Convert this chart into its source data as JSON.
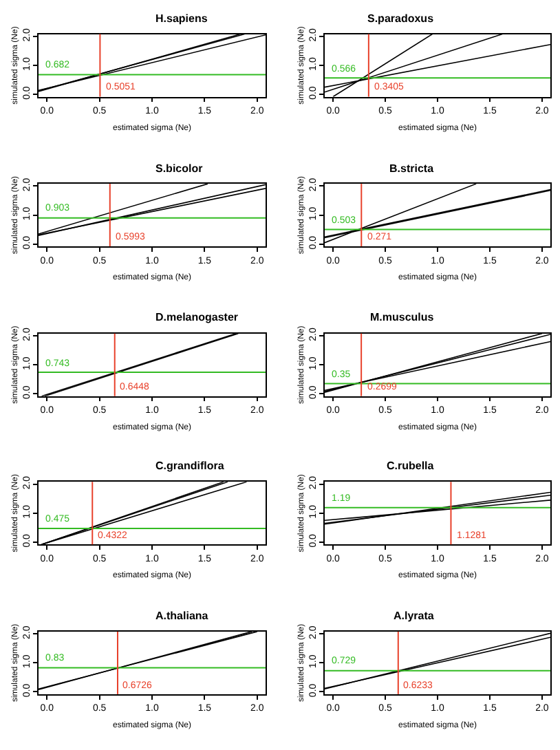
{
  "chart_data": [
    {
      "type": "line",
      "title": "H.sapiens",
      "xlabel": "estimated sigma (Ne)",
      "ylabel": "simulated sigma (Ne)",
      "xlim": [
        -0.08,
        2.08
      ],
      "ylim": [
        -0.08,
        2.08
      ],
      "xticks": [
        {
          "value": 0,
          "label": "0.0"
        },
        {
          "value": 0.5,
          "label": "0.5"
        },
        {
          "value": 1,
          "label": "1.0"
        },
        {
          "value": 1.5,
          "label": "1.5"
        },
        {
          "value": 2,
          "label": "2.0"
        }
      ],
      "yticks": [
        {
          "value": 0,
          "label": "0.0"
        },
        {
          "value": 1,
          "label": "1.0"
        },
        {
          "value": 2,
          "label": "2.0"
        }
      ],
      "series": [
        {
          "color": "#000000",
          "x": [
            -0.08,
            1.84
          ],
          "values": [
            0.1,
            2.08
          ]
        },
        {
          "color": "#000000",
          "x": [
            -0.08,
            1.88
          ],
          "values": [
            0.12,
            2.08
          ]
        },
        {
          "color": "#000000",
          "x": [
            -0.08,
            2.08
          ],
          "values": [
            0.14,
            2.05
          ]
        }
      ],
      "ref_lines": [
        {
          "axis": "y",
          "value": 0.682,
          "label": "0.682",
          "color": "#33bb22"
        },
        {
          "axis": "x",
          "value": 0.5051,
          "label": "0.5051",
          "color": "#e8402a"
        }
      ]
    },
    {
      "type": "line",
      "title": "S.paradoxus",
      "xlabel": "estimated sigma (Ne)",
      "ylabel": "simulated sigma (Ne)",
      "xlim": [
        -0.08,
        2.08
      ],
      "ylim": [
        -0.08,
        2.08
      ],
      "xticks": [
        {
          "value": 0,
          "label": "0.0"
        },
        {
          "value": 0.5,
          "label": "0.5"
        },
        {
          "value": 1,
          "label": "1.0"
        },
        {
          "value": 1.5,
          "label": "1.5"
        },
        {
          "value": 2,
          "label": "2.0"
        }
      ],
      "yticks": [
        {
          "value": 0,
          "label": "0.0"
        },
        {
          "value": 1,
          "label": "1.0"
        },
        {
          "value": 2,
          "label": "2.0"
        }
      ],
      "series": [
        {
          "color": "#000000",
          "x": [
            0.0,
            0.95
          ],
          "values": [
            -0.08,
            2.08
          ]
        },
        {
          "color": "#000000",
          "x": [
            -0.08,
            1.62
          ],
          "values": [
            0.08,
            2.08
          ]
        },
        {
          "color": "#000000",
          "x": [
            -0.08,
            2.08
          ],
          "values": [
            0.25,
            1.72
          ]
        }
      ],
      "ref_lines": [
        {
          "axis": "y",
          "value": 0.566,
          "label": "0.566",
          "color": "#33bb22"
        },
        {
          "axis": "x",
          "value": 0.3405,
          "label": "0.3405",
          "color": "#e8402a"
        }
      ]
    },
    {
      "type": "line",
      "title": "S.bicolor",
      "xlabel": "estimated sigma (Ne)",
      "ylabel": "simulated sigma (Ne)",
      "xlim": [
        -0.08,
        2.08
      ],
      "ylim": [
        -0.08,
        2.08
      ],
      "xticks": [
        {
          "value": 0,
          "label": "0.0"
        },
        {
          "value": 0.5,
          "label": "0.5"
        },
        {
          "value": 1,
          "label": "1.0"
        },
        {
          "value": 1.5,
          "label": "1.5"
        },
        {
          "value": 2,
          "label": "2.0"
        }
      ],
      "yticks": [
        {
          "value": 0,
          "label": "0.0"
        },
        {
          "value": 1,
          "label": "1.0"
        },
        {
          "value": 2,
          "label": "2.0"
        }
      ],
      "series": [
        {
          "color": "#000000",
          "x": [
            -0.08,
            1.53
          ],
          "values": [
            0.35,
            2.08
          ]
        },
        {
          "color": "#000000",
          "x": [
            -0.08,
            2.08
          ],
          "values": [
            0.3,
            2.05
          ]
        },
        {
          "color": "#000000",
          "x": [
            -0.08,
            2.08
          ],
          "values": [
            0.32,
            1.92
          ]
        }
      ],
      "ref_lines": [
        {
          "axis": "y",
          "value": 0.903,
          "label": "0.903",
          "color": "#33bb22"
        },
        {
          "axis": "x",
          "value": 0.5993,
          "label": "0.5993",
          "color": "#e8402a"
        }
      ]
    },
    {
      "type": "line",
      "title": "B.stricta",
      "xlabel": "estimated sigma (Ne)",
      "ylabel": "simulated sigma (Ne)",
      "xlim": [
        -0.08,
        2.08
      ],
      "ylim": [
        -0.08,
        2.08
      ],
      "xticks": [
        {
          "value": 0,
          "label": "0.0"
        },
        {
          "value": 0.5,
          "label": "0.5"
        },
        {
          "value": 1,
          "label": "1.0"
        },
        {
          "value": 1.5,
          "label": "1.5"
        },
        {
          "value": 2,
          "label": "2.0"
        }
      ],
      "yticks": [
        {
          "value": 0,
          "label": "0.0"
        },
        {
          "value": 1,
          "label": "1.0"
        },
        {
          "value": 2,
          "label": "2.0"
        }
      ],
      "series": [
        {
          "color": "#000000",
          "x": [
            -0.08,
            1.37
          ],
          "values": [
            0.05,
            2.08
          ]
        },
        {
          "color": "#000000",
          "x": [
            -0.08,
            2.08
          ],
          "values": [
            0.22,
            1.85
          ]
        },
        {
          "color": "#000000",
          "x": [
            -0.08,
            2.08
          ],
          "values": [
            0.25,
            1.88
          ]
        }
      ],
      "ref_lines": [
        {
          "axis": "y",
          "value": 0.503,
          "label": "0.503",
          "color": "#33bb22"
        },
        {
          "axis": "x",
          "value": 0.271,
          "label": "0.271",
          "color": "#e8402a"
        }
      ]
    },
    {
      "type": "line",
      "title": "D.melanogaster",
      "xlabel": "estimated sigma (Ne)",
      "ylabel": "simulated sigma (Ne)",
      "xlim": [
        -0.08,
        2.08
      ],
      "ylim": [
        -0.08,
        2.08
      ],
      "xticks": [
        {
          "value": 0,
          "label": "0.0"
        },
        {
          "value": 0.5,
          "label": "0.5"
        },
        {
          "value": 1,
          "label": "1.0"
        },
        {
          "value": 1.5,
          "label": "1.5"
        },
        {
          "value": 2,
          "label": "2.0"
        }
      ],
      "yticks": [
        {
          "value": 0,
          "label": "0.0"
        },
        {
          "value": 1,
          "label": "1.0"
        },
        {
          "value": 2,
          "label": "2.0"
        }
      ],
      "series": [
        {
          "color": "#000000",
          "x": [
            -0.02,
            1.82
          ],
          "values": [
            -0.08,
            2.08
          ]
        },
        {
          "color": "#000000",
          "x": [
            -0.05,
            1.8
          ],
          "values": [
            -0.08,
            2.08
          ]
        }
      ],
      "ref_lines": [
        {
          "axis": "y",
          "value": 0.743,
          "label": "0.743",
          "color": "#33bb22"
        },
        {
          "axis": "x",
          "value": 0.6448,
          "label": "0.6448",
          "color": "#e8402a"
        }
      ]
    },
    {
      "type": "line",
      "title": "M.musculus",
      "xlabel": "estimated sigma (Ne)",
      "ylabel": "simulated sigma (Ne)",
      "xlim": [
        -0.08,
        2.08
      ],
      "ylim": [
        -0.08,
        2.08
      ],
      "xticks": [
        {
          "value": 0,
          "label": "0.0"
        },
        {
          "value": 0.5,
          "label": "0.5"
        },
        {
          "value": 1,
          "label": "1.0"
        },
        {
          "value": 1.5,
          "label": "1.5"
        },
        {
          "value": 2,
          "label": "2.0"
        }
      ],
      "yticks": [
        {
          "value": 0,
          "label": "0.0"
        },
        {
          "value": 1,
          "label": "1.0"
        },
        {
          "value": 2,
          "label": "2.0"
        }
      ],
      "series": [
        {
          "color": "#000000",
          "x": [
            -0.08,
            2.0
          ],
          "values": [
            0.05,
            2.08
          ]
        },
        {
          "color": "#000000",
          "x": [
            -0.08,
            2.08
          ],
          "values": [
            0.08,
            2.05
          ]
        },
        {
          "color": "#000000",
          "x": [
            -0.08,
            2.08
          ],
          "values": [
            0.12,
            1.8
          ]
        }
      ],
      "ref_lines": [
        {
          "axis": "y",
          "value": 0.35,
          "label": "0.35",
          "color": "#33bb22"
        },
        {
          "axis": "x",
          "value": 0.2699,
          "label": "0.2699",
          "color": "#e8402a"
        }
      ]
    },
    {
      "type": "line",
      "title": "C.grandiflora",
      "xlabel": "estimated sigma (Ne)",
      "ylabel": "simulated sigma (Ne)",
      "xlim": [
        -0.08,
        2.08
      ],
      "ylim": [
        -0.08,
        2.08
      ],
      "xticks": [
        {
          "value": 0,
          "label": "0.0"
        },
        {
          "value": 0.5,
          "label": "0.5"
        },
        {
          "value": 1,
          "label": "1.0"
        },
        {
          "value": 1.5,
          "label": "1.5"
        },
        {
          "value": 2,
          "label": "2.0"
        }
      ],
      "yticks": [
        {
          "value": 0,
          "label": "0.0"
        },
        {
          "value": 1,
          "label": "1.0"
        },
        {
          "value": 2,
          "label": "2.0"
        }
      ],
      "series": [
        {
          "color": "#000000",
          "x": [
            -0.05,
            1.68
          ],
          "values": [
            -0.08,
            2.08
          ]
        },
        {
          "color": "#000000",
          "x": [
            -0.05,
            1.72
          ],
          "values": [
            -0.08,
            2.08
          ]
        },
        {
          "color": "#000000",
          "x": [
            -0.05,
            1.9
          ],
          "values": [
            -0.08,
            2.08
          ]
        }
      ],
      "ref_lines": [
        {
          "axis": "y",
          "value": 0.475,
          "label": "0.475",
          "color": "#33bb22"
        },
        {
          "axis": "x",
          "value": 0.4322,
          "label": "0.4322",
          "color": "#e8402a"
        }
      ]
    },
    {
      "type": "line",
      "title": "C.rubella",
      "xlabel": "estimated sigma (Ne)",
      "ylabel": "simulated sigma (Ne)",
      "xlim": [
        -0.08,
        2.08
      ],
      "ylim": [
        -0.08,
        2.08
      ],
      "xticks": [
        {
          "value": 0,
          "label": "0.0"
        },
        {
          "value": 0.5,
          "label": "0.5"
        },
        {
          "value": 1,
          "label": "1.0"
        },
        {
          "value": 1.5,
          "label": "1.5"
        },
        {
          "value": 2,
          "label": "2.0"
        }
      ],
      "yticks": [
        {
          "value": 0,
          "label": "0.0"
        },
        {
          "value": 1,
          "label": "1.0"
        },
        {
          "value": 2,
          "label": "2.0"
        }
      ],
      "series": [
        {
          "color": "#000000",
          "x": [
            -0.08,
            2.08
          ],
          "values": [
            0.62,
            1.72
          ]
        },
        {
          "color": "#000000",
          "x": [
            -0.08,
            2.08
          ],
          "values": [
            0.65,
            1.62
          ]
        },
        {
          "color": "#000000",
          "x": [
            -0.08,
            2.08
          ],
          "values": [
            0.75,
            1.45
          ]
        }
      ],
      "ref_lines": [
        {
          "axis": "y",
          "value": 1.19,
          "label": "1.19",
          "color": "#33bb22"
        },
        {
          "axis": "x",
          "value": 1.1281,
          "label": "1.1281",
          "color": "#e8402a"
        }
      ]
    },
    {
      "type": "line",
      "title": "A.thaliana",
      "xlabel": "estimated sigma (Ne)",
      "ylabel": "simulated sigma (Ne)",
      "xlim": [
        -0.08,
        2.08
      ],
      "ylim": [
        -0.08,
        2.08
      ],
      "xticks": [
        {
          "value": 0,
          "label": "0.0"
        },
        {
          "value": 0.5,
          "label": "0.5"
        },
        {
          "value": 1,
          "label": "1.0"
        },
        {
          "value": 1.5,
          "label": "1.5"
        },
        {
          "value": 2,
          "label": "2.0"
        }
      ],
      "yticks": [
        {
          "value": 0,
          "label": "0.0"
        },
        {
          "value": 1,
          "label": "1.0"
        },
        {
          "value": 2,
          "label": "2.0"
        }
      ],
      "series": [
        {
          "color": "#000000",
          "x": [
            -0.08,
            1.95
          ],
          "values": [
            0.08,
            2.08
          ]
        },
        {
          "color": "#000000",
          "x": [
            -0.08,
            2.0
          ],
          "values": [
            0.1,
            2.08
          ]
        }
      ],
      "ref_lines": [
        {
          "axis": "y",
          "value": 0.83,
          "label": "0.83",
          "color": "#33bb22"
        },
        {
          "axis": "x",
          "value": 0.6726,
          "label": "0.6726",
          "color": "#e8402a"
        }
      ]
    },
    {
      "type": "line",
      "title": "A.lyrata",
      "xlabel": "estimated sigma (Ne)",
      "ylabel": "simulated sigma (Ne)",
      "xlim": [
        -0.08,
        2.08
      ],
      "ylim": [
        -0.08,
        2.08
      ],
      "xticks": [
        {
          "value": 0,
          "label": "0.0"
        },
        {
          "value": 0.5,
          "label": "0.5"
        },
        {
          "value": 1,
          "label": "1.0"
        },
        {
          "value": 1.5,
          "label": "1.5"
        },
        {
          "value": 2,
          "label": "2.0"
        }
      ],
      "yticks": [
        {
          "value": 0,
          "label": "0.0"
        },
        {
          "value": 1,
          "label": "1.0"
        },
        {
          "value": 2,
          "label": "2.0"
        }
      ],
      "series": [
        {
          "color": "#000000",
          "x": [
            -0.08,
            2.08
          ],
          "values": [
            0.1,
            2.02
          ]
        },
        {
          "color": "#000000",
          "x": [
            -0.08,
            2.08
          ],
          "values": [
            0.12,
            1.88
          ]
        }
      ],
      "ref_lines": [
        {
          "axis": "y",
          "value": 0.729,
          "label": "0.729",
          "color": "#33bb22"
        },
        {
          "axis": "x",
          "value": 0.6233,
          "label": "0.6233",
          "color": "#e8402a"
        }
      ]
    }
  ]
}
